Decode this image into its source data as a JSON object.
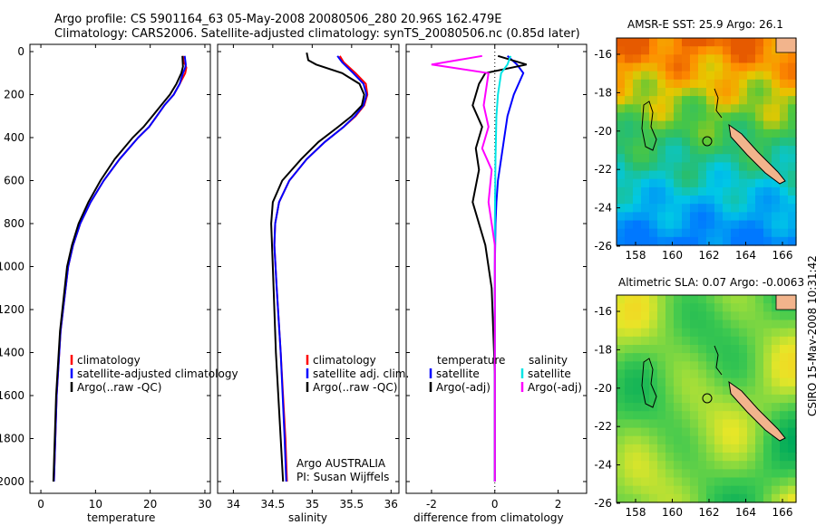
{
  "header": {
    "line1": "Argo profile: CS 5901164_63 05-May-2008 20080506_280 20.96S 162.479E",
    "line2": "Climatology: CARS2006. Satellite-adjusted climatology: synTS_20080506.nc (0.85d later)"
  },
  "colors": {
    "climatology": "#ff0000",
    "satellite": "#0000ff",
    "argo": "#000000",
    "sal_satellite": "#00e5e5",
    "sal_argo": "#ff00ff"
  },
  "chart_data": [
    {
      "type": "line",
      "xlabel": "temperature",
      "xlim": [
        -2,
        31
      ],
      "ylim": [
        2050,
        0
      ],
      "xticks": [
        0,
        10,
        20,
        30
      ],
      "yticks": [
        0,
        200,
        400,
        600,
        800,
        1000,
        1200,
        1400,
        1600,
        1800,
        2000
      ],
      "legend": {
        "placement": "lower-middle"
      },
      "series": [
        {
          "name": "climatology",
          "color": "#ff0000",
          "x": [
            26.0,
            26.1,
            26.4,
            26.6,
            26.4,
            25.4,
            24.3,
            22.6,
            21.2,
            19.8,
            17.8,
            14.4,
            11.5,
            9.1,
            7.2,
            5.9,
            5.0,
            3.6,
            2.9,
            2.4
          ],
          "y": [
            20,
            50,
            60,
            75,
            100,
            150,
            200,
            250,
            300,
            350,
            400,
            500,
            600,
            700,
            800,
            900,
            1000,
            1300,
            1600,
            2000
          ]
        },
        {
          "name": "satellite-adjusted climatology",
          "color": "#0000ff",
          "x": [
            26.3,
            26.5,
            26.4,
            26.0,
            25.4,
            24.3,
            22.6,
            21.2,
            19.8,
            17.8,
            14.4,
            11.5,
            9.1,
            7.2,
            5.9,
            5.0,
            3.6,
            2.9,
            2.4
          ],
          "y": [
            20,
            60,
            75,
            100,
            150,
            200,
            250,
            300,
            350,
            400,
            500,
            600,
            700,
            800,
            900,
            1000,
            1300,
            1600,
            2000
          ]
        },
        {
          "name": "Argo(..raw -QC)",
          "color": "#000000",
          "x": [
            25.9,
            26.0,
            25.7,
            24.8,
            23.6,
            22.0,
            20.4,
            18.8,
            16.8,
            13.5,
            10.9,
            8.7,
            6.9,
            5.7,
            4.8,
            3.5,
            2.8,
            2.3
          ],
          "y": [
            20,
            70,
            100,
            150,
            200,
            250,
            300,
            350,
            400,
            500,
            600,
            700,
            800,
            900,
            1000,
            1300,
            1600,
            2000
          ]
        }
      ]
    },
    {
      "type": "line",
      "xlabel": "salinity",
      "xlim": [
        33.8,
        36.1
      ],
      "ylim": [
        2050,
        0
      ],
      "xticks": [
        34,
        34.5,
        35,
        35.5,
        36
      ],
      "legend": {
        "placement": "lower-middle"
      },
      "series": [
        {
          "name": "climatology",
          "color": "#ff0000",
          "x": [
            35.35,
            35.4,
            35.55,
            35.68,
            35.7,
            35.66,
            35.55,
            35.4,
            35.16,
            34.93,
            34.71,
            34.58,
            34.53,
            34.52,
            34.55,
            34.6,
            34.66,
            34.68
          ],
          "y": [
            20,
            50,
            100,
            150,
            200,
            250,
            300,
            350,
            420,
            500,
            600,
            700,
            800,
            900,
            1100,
            1400,
            1800,
            2000
          ]
        },
        {
          "name": "satellite adj. clim.",
          "color": "#0000ff",
          "x": [
            35.32,
            35.38,
            35.52,
            35.65,
            35.69,
            35.65,
            35.54,
            35.4,
            35.16,
            34.93,
            34.71,
            34.58,
            34.53,
            34.52,
            34.55,
            34.6,
            34.65,
            34.67
          ],
          "y": [
            20,
            50,
            100,
            150,
            200,
            250,
            300,
            350,
            420,
            500,
            600,
            700,
            800,
            900,
            1100,
            1400,
            1800,
            2000
          ]
        },
        {
          "name": "Argo(..raw -QC)",
          "color": "#000000",
          "x": [
            34.93,
            34.95,
            35.05,
            35.38,
            35.6,
            35.66,
            35.63,
            35.5,
            35.33,
            35.08,
            34.86,
            34.62,
            34.5,
            34.48,
            34.5,
            34.54,
            34.6,
            34.63
          ],
          "y": [
            5,
            40,
            60,
            100,
            150,
            200,
            250,
            300,
            350,
            420,
            500,
            600,
            700,
            800,
            1000,
            1400,
            1800,
            2000
          ]
        }
      ]
    },
    {
      "type": "line",
      "xlabel": "difference from climatology",
      "xlim": [
        -2.8,
        2.9
      ],
      "ylim": [
        2050,
        0
      ],
      "xticks": [
        -2,
        0,
        2
      ],
      "legend": {
        "placement": "lower-middle"
      },
      "legend_titles": [
        "temperature",
        "salinity"
      ],
      "series": [
        {
          "name": "satellite",
          "group": "temperature",
          "color": "#0000ff",
          "x": [
            0.4,
            0.7,
            0.9,
            0.6,
            0.4,
            0.3,
            0.2,
            0.1,
            0.05,
            0.02,
            0,
            0,
            0
          ],
          "y": [
            20,
            60,
            100,
            200,
            300,
            400,
            500,
            600,
            700,
            800,
            1000,
            1500,
            2000
          ]
        },
        {
          "name": "Argo(-adj)",
          "group": "temperature",
          "color": "#000000",
          "x": [
            0.1,
            1.0,
            -0.3,
            -0.5,
            -0.7,
            -0.4,
            -0.6,
            -0.5,
            -0.7,
            -0.3,
            -0.1,
            0,
            0
          ],
          "y": [
            20,
            60,
            100,
            150,
            250,
            350,
            450,
            550,
            700,
            900,
            1100,
            1500,
            2000
          ]
        },
        {
          "name": "satellite",
          "group": "salinity",
          "color": "#00e5e5",
          "x": [
            0.5,
            0.4,
            0.2,
            0.1,
            0.05,
            0.02,
            0,
            0,
            0
          ],
          "y": [
            20,
            60,
            100,
            200,
            300,
            500,
            800,
            1200,
            2000
          ]
        },
        {
          "name": "Argo(-adj)",
          "group": "salinity",
          "color": "#ff00ff",
          "x": [
            -0.4,
            -2.0,
            -0.2,
            -0.35,
            -0.2,
            -0.4,
            -0.1,
            -0.2,
            0,
            0
          ],
          "y": [
            20,
            60,
            100,
            250,
            350,
            450,
            550,
            700,
            900,
            2000
          ]
        }
      ]
    }
  ],
  "panel_text": {
    "institution": "Argo AUSTRALIA",
    "pi": "PI: Susan Wijffels"
  },
  "maps": [
    {
      "title": "AMSR-E SST: 25.9 Argo: 26.1",
      "xticks": [
        "158",
        "160",
        "162",
        "164",
        "166"
      ],
      "yticks": [
        "-16",
        "-18",
        "-20",
        "-22",
        "-24",
        "-26"
      ],
      "field": "sst"
    },
    {
      "title": "Altimetric SLA: 0.07 Argo: -0.0063",
      "xticks": [
        "158",
        "160",
        "162",
        "164",
        "166"
      ],
      "yticks": [
        "-16",
        "-18",
        "-20",
        "-22",
        "-24",
        "-26"
      ],
      "field": "sla"
    }
  ],
  "footer": {
    "stamp": "CSIRO 15-May-2008 10:31:42"
  }
}
